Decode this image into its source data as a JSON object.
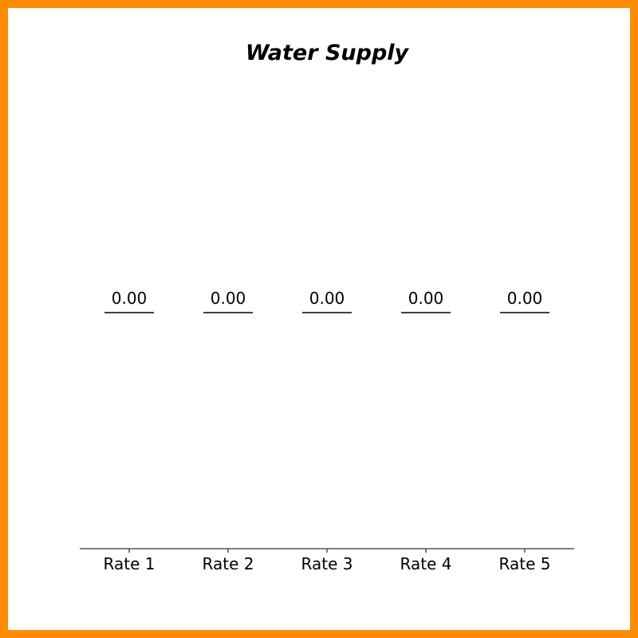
{
  "chart_data": {
    "type": "bar",
    "title": "Water Supply",
    "xlabel": "",
    "ylabel": "",
    "categories": [
      "Rate 1",
      "Rate 2",
      "Rate 3",
      "Rate 4",
      "Rate 5"
    ],
    "values": [
      0.0,
      0.0,
      0.0,
      0.0,
      0.0
    ],
    "data_labels": [
      "0.00",
      "0.00",
      "0.00",
      "0.00",
      "0.00"
    ],
    "grid": false,
    "legend": "none"
  },
  "colors": {
    "frame": "#ff8c00",
    "background": "#ffffff",
    "mark": "#000000"
  }
}
